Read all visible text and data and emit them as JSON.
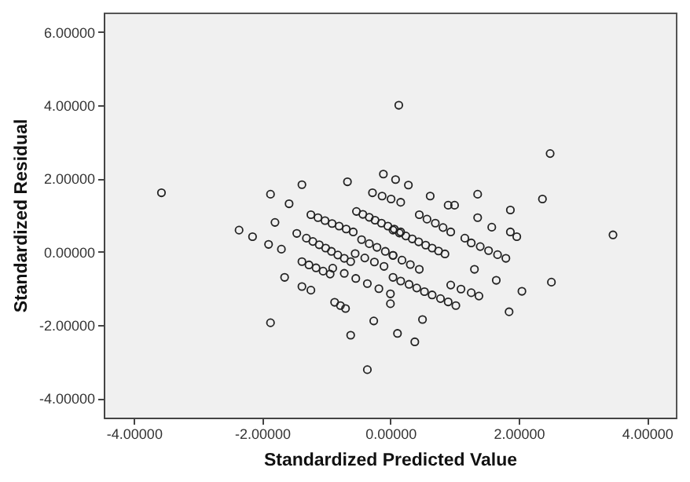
{
  "chart_data": {
    "type": "scatter",
    "xlabel": "Standardized Predicted Value",
    "ylabel": "Standardized Residual",
    "marker": "circle",
    "grid": false,
    "xlim": [
      -4.47,
      4.45
    ],
    "ylim": [
      -4.53,
      6.53
    ],
    "xticks": [
      {
        "value": -4,
        "label": "-4.00000"
      },
      {
        "value": -2,
        "label": "-2.00000"
      },
      {
        "value": 0,
        "label": "0.00000"
      },
      {
        "value": 2,
        "label": "2.00000"
      },
      {
        "value": 4,
        "label": "4.00000"
      }
    ],
    "yticks": [
      {
        "value": -4,
        "label": "-4.00000"
      },
      {
        "value": -2,
        "label": "-2.00000"
      },
      {
        "value": 0,
        "label": "0.00000"
      },
      {
        "value": 2,
        "label": "2.00000"
      },
      {
        "value": 4,
        "label": "4.00000"
      },
      {
        "value": 6,
        "label": "6.00000"
      }
    ],
    "series": [
      {
        "color": "#222222",
        "x": [
          -1.24,
          -1.13,
          -1.02,
          -0.91,
          -0.8,
          -0.69,
          -0.58,
          -1.31,
          -1.21,
          -1.11,
          -1.01,
          -0.92,
          -0.82,
          -0.72,
          -0.62,
          -1.38,
          -1.27,
          -1.16,
          -1.05,
          -0.94,
          -0.53,
          -0.43,
          -0.33,
          -0.24,
          -0.14,
          -0.04,
          0.06,
          0.16,
          -0.45,
          -0.33,
          -0.21,
          -0.08,
          0.04,
          0.04,
          0.14,
          0.24,
          0.34,
          0.44,
          0.55,
          0.65,
          0.75,
          0.85,
          0.04,
          0.18,
          0.31,
          0.45,
          0.04,
          0.16,
          0.29,
          0.41,
          0.53,
          0.65,
          0.78,
          0.9,
          1.02,
          0.45,
          0.57,
          0.7,
          0.82,
          0.94,
          1.26,
          1.4,
          1.53,
          1.67,
          1.8,
          0.94,
          1.1,
          1.26,
          -0.11,
          0.08,
          0.28,
          -0.28,
          -0.13,
          0.01,
          0.16,
          -0.9,
          -0.72,
          -0.54,
          -0.36,
          -0.18,
          0.0,
          -0.55,
          -0.4,
          -0.25,
          -0.1,
          -3.57,
          0.13,
          2.49,
          3.47,
          -1.87,
          -1.38,
          -1.58,
          -2.36,
          -2.15,
          -1.8,
          -1.9,
          -1.7,
          -1.46,
          -1.65,
          -1.38,
          -1.24,
          -1.87,
          -0.67,
          0.62,
          0.9,
          1.0,
          1.36,
          1.87,
          2.37,
          1.36,
          1.58,
          1.87,
          1.97,
          2.51,
          2.05,
          1.85,
          1.65,
          1.31,
          1.38,
          -0.36,
          0.11,
          0.38,
          -0.62,
          -0.26,
          0.5,
          0.0,
          -0.87,
          -0.78,
          -0.7,
          1.16
        ],
        "values": [
          1.01,
          0.93,
          0.85,
          0.77,
          0.7,
          0.62,
          0.54,
          0.37,
          0.28,
          0.19,
          0.1,
          0.01,
          -0.09,
          -0.18,
          -0.27,
          -0.27,
          -0.36,
          -0.44,
          -0.53,
          -0.61,
          1.1,
          1.02,
          0.94,
          0.86,
          0.78,
          0.7,
          0.62,
          0.54,
          0.33,
          0.22,
          0.12,
          0.01,
          -0.1,
          0.59,
          0.51,
          0.43,
          0.35,
          0.27,
          0.18,
          0.1,
          0.02,
          -0.06,
          -0.1,
          -0.23,
          -0.35,
          -0.48,
          -0.7,
          -0.8,
          -0.89,
          -0.99,
          -1.09,
          -1.18,
          -1.28,
          -1.37,
          -1.47,
          1.01,
          0.89,
          0.78,
          0.66,
          0.54,
          0.24,
          0.14,
          0.03,
          -0.08,
          -0.18,
          -0.91,
          -1.02,
          -1.12,
          2.12,
          1.97,
          1.82,
          1.61,
          1.52,
          1.44,
          1.35,
          -0.45,
          -0.59,
          -0.73,
          -0.87,
          -1.01,
          -1.15,
          -0.05,
          -0.17,
          -0.28,
          -0.4,
          1.61,
          4.0,
          2.68,
          0.46,
          1.57,
          1.83,
          1.31,
          0.59,
          0.41,
          0.8,
          0.2,
          0.07,
          0.5,
          -0.7,
          -0.95,
          -1.05,
          -1.94,
          1.91,
          1.52,
          1.27,
          1.27,
          1.57,
          1.14,
          1.44,
          0.93,
          0.67,
          0.54,
          0.41,
          -0.83,
          -1.08,
          -1.64,
          -0.78,
          -0.48,
          -1.21,
          -3.22,
          -2.23,
          -2.46,
          -2.28,
          -1.89,
          -1.85,
          -1.42,
          -1.38,
          -1.47,
          -1.55,
          0.37
        ]
      }
    ]
  }
}
